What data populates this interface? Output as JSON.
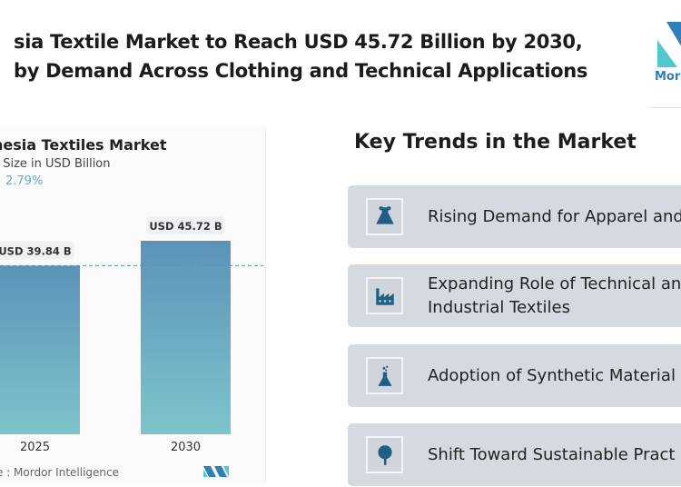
{
  "headline": {
    "line1": "sia Textile Market to Reach USD 45.72 Billion by 2030,",
    "line2": "by Demand Across Clothing and Technical Applications"
  },
  "brand": {
    "logo_text": "Mord"
  },
  "chart_data": {
    "type": "bar",
    "title": "nesia Textiles Market",
    "subtitle": "t Size in USD Billion",
    "cagr": "2.79%",
    "categories": [
      "2025",
      "2030"
    ],
    "values": [
      39.84,
      45.72
    ],
    "data_labels": [
      "USD 39.84 B",
      "USD 45.72 B"
    ],
    "reference_line": "dashed at 2025 value",
    "colors": {
      "top": "#5b93b9",
      "bottom": "#7ec4cc"
    },
    "source": "e :  Mordor Intelligence"
  },
  "trends": {
    "title": "Key Trends in the Market",
    "items": [
      {
        "icon": "dress-icon",
        "label": "Rising Demand for Apparel and"
      },
      {
        "icon": "factory-icon",
        "label": "Expanding Role of Technical an\nIndustrial Textiles"
      },
      {
        "icon": "flask-icon",
        "label": "Adoption of Synthetic Material"
      },
      {
        "icon": "tree-icon",
        "label": "Shift Toward Sustainable Pract"
      }
    ]
  },
  "colors": {
    "icon": "#1f5f86",
    "card": "#d5dae0"
  }
}
